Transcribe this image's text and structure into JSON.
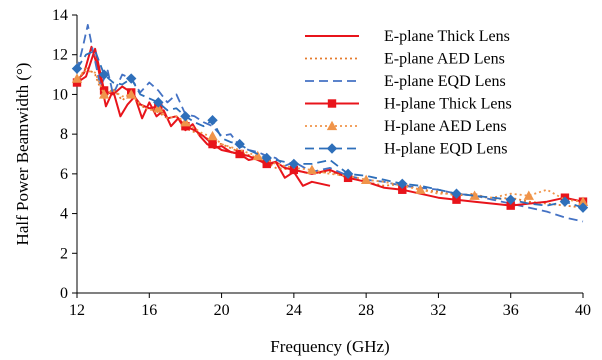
{
  "chart_data": {
    "type": "line",
    "xlabel": "Frequency (GHz)",
    "ylabel": "Half Power Beamwidth (°)",
    "xlim": [
      12,
      40
    ],
    "ylim": [
      0,
      14
    ],
    "xticks": [
      "12",
      "16",
      "20",
      "24",
      "28",
      "32",
      "36",
      "40"
    ],
    "yticks": [
      "0",
      "2",
      "4",
      "6",
      "8",
      "10",
      "12",
      "14"
    ],
    "grid": false,
    "legend_position": "top-right",
    "series": [
      {
        "name": "E-plane Thick Lens",
        "color": "#e8141b",
        "style": "solid",
        "marker": "none",
        "x": [
          12,
          12.4,
          12.8,
          13.2,
          13.6,
          14,
          14.4,
          14.8,
          15.2,
          15.6,
          16,
          16.4,
          16.8,
          17.2,
          17.6,
          18,
          18.4,
          18.8,
          19.2,
          19.6,
          20,
          20.5,
          21,
          21.5,
          22,
          22.5,
          23,
          23.5,
          24,
          24.5,
          25,
          25.5,
          26
        ],
        "y": [
          10.7,
          11.1,
          12.4,
          11.2,
          9.4,
          10.2,
          8.9,
          9.5,
          9.9,
          8.8,
          9.6,
          8.9,
          9.2,
          8.4,
          8.8,
          8.2,
          8.5,
          7.9,
          7.5,
          7.3,
          7.4,
          7.1,
          7.0,
          6.7,
          6.8,
          6.4,
          6.6,
          5.8,
          6.1,
          5.4,
          5.6,
          5.5,
          5.4
        ]
      },
      {
        "name": "E-plane AED Lens",
        "color": "#e57b2d",
        "style": "dotted",
        "marker": "none",
        "x": [
          12,
          12.5,
          13,
          13.5,
          14,
          14.5,
          15,
          15.5,
          16,
          16.5,
          17,
          17.5,
          18,
          18.5,
          19,
          19.5,
          20,
          21,
          22,
          23,
          24,
          25,
          26,
          27,
          28,
          29,
          30,
          31,
          32,
          33,
          34,
          35,
          36,
          37,
          38,
          39,
          40
        ],
        "y": [
          10.6,
          11.4,
          11.0,
          9.8,
          10.3,
          9.7,
          10.1,
          9.4,
          9.3,
          9.1,
          8.8,
          8.9,
          8.3,
          8.1,
          7.9,
          7.6,
          7.5,
          7.1,
          6.8,
          6.3,
          6.2,
          6.0,
          6.1,
          5.8,
          5.6,
          5.4,
          5.5,
          5.2,
          5.1,
          4.9,
          5.0,
          4.7,
          4.8,
          4.6,
          4.5,
          4.4,
          4.3
        ]
      },
      {
        "name": "E-plane EQD Lens",
        "color": "#4472c4",
        "style": "dashed",
        "marker": "none",
        "x": [
          12,
          12.3,
          12.6,
          12.9,
          13.3,
          13.7,
          14,
          14.5,
          15,
          15.5,
          16,
          16.5,
          17,
          17.5,
          18,
          18.5,
          19,
          19.5,
          20,
          20.5,
          21,
          21.5,
          22,
          22.5,
          23,
          23.5,
          24,
          25,
          26,
          27,
          28,
          29,
          30,
          31,
          32,
          33,
          34,
          35,
          36,
          37,
          38,
          39,
          40
        ],
        "y": [
          11.2,
          12.3,
          13.5,
          12.1,
          10.4,
          11.2,
          10.0,
          11.0,
          10.8,
          10.1,
          10.6,
          10.2,
          9.6,
          10.0,
          9.0,
          8.9,
          8.6,
          8.4,
          7.9,
          8.0,
          7.4,
          7.2,
          7.1,
          6.9,
          6.8,
          6.4,
          6.6,
          6.1,
          6.3,
          5.9,
          5.7,
          5.6,
          5.4,
          5.3,
          5.2,
          5.0,
          4.9,
          4.7,
          4.5,
          4.3,
          4.1,
          3.8,
          3.6
        ]
      },
      {
        "name": "H-plane Thick Lens",
        "color": "#e8141b",
        "style": "solid",
        "marker": "square",
        "x": [
          12,
          12.5,
          13,
          13.5,
          14,
          14.5,
          15,
          15.5,
          16,
          16.5,
          17,
          17.5,
          18,
          18.5,
          19,
          19.5,
          20,
          20.5,
          21,
          21.5,
          22,
          22.5,
          23,
          23.5,
          24,
          25,
          26,
          27,
          28,
          29,
          30,
          31,
          32,
          33,
          34,
          35,
          36,
          37,
          38,
          39,
          40
        ],
        "y": [
          10.6,
          10.9,
          12.3,
          10.2,
          10.0,
          10.4,
          10.1,
          9.5,
          9.3,
          9.4,
          8.8,
          8.9,
          8.4,
          8.2,
          7.9,
          7.5,
          7.2,
          7.1,
          7.0,
          6.9,
          6.7,
          6.5,
          6.6,
          6.3,
          6.2,
          6.0,
          6.2,
          5.8,
          5.6,
          5.3,
          5.2,
          5.0,
          4.8,
          4.7,
          4.6,
          4.5,
          4.4,
          4.5,
          4.6,
          4.8,
          4.6
        ]
      },
      {
        "name": "H-plane AED Lens",
        "color": "#f0944a",
        "style": "dotted",
        "marker": "triangle",
        "x": [
          12,
          12.5,
          13,
          13.5,
          14,
          14.5,
          15,
          15.5,
          16,
          16.5,
          17,
          17.5,
          18,
          18.5,
          19,
          19.5,
          20,
          21,
          22,
          23,
          24,
          25,
          26,
          27,
          28,
          29,
          30,
          31,
          32,
          33,
          34,
          35,
          36,
          37,
          38,
          39,
          40
        ],
        "y": [
          10.8,
          11.2,
          11.1,
          10.0,
          10.2,
          9.9,
          10.0,
          9.5,
          9.2,
          9.3,
          8.8,
          8.9,
          8.6,
          8.3,
          8.0,
          7.9,
          7.5,
          7.2,
          6.9,
          6.5,
          6.3,
          6.2,
          6.0,
          5.9,
          5.7,
          5.6,
          5.4,
          5.2,
          5.0,
          5.0,
          4.9,
          4.8,
          5.0,
          4.9,
          5.2,
          4.7,
          4.6
        ]
      },
      {
        "name": "H-plane EQD Lens",
        "color": "#2e6fba",
        "style": "dashed",
        "marker": "diamond",
        "x": [
          12,
          12.5,
          13,
          13.5,
          14,
          14.5,
          15,
          15.5,
          16,
          16.5,
          17,
          17.5,
          18,
          18.5,
          19,
          19.5,
          20,
          20.5,
          21,
          21.5,
          22,
          22.5,
          23,
          23.5,
          24,
          25,
          26,
          27,
          28,
          29,
          30,
          31,
          32,
          33,
          34,
          35,
          36,
          37,
          38,
          39,
          40
        ],
        "y": [
          11.3,
          12.0,
          12.2,
          11.0,
          10.6,
          10.5,
          10.8,
          10.0,
          9.8,
          9.6,
          9.2,
          9.3,
          8.9,
          8.6,
          8.4,
          8.7,
          7.8,
          7.6,
          7.5,
          7.2,
          7.0,
          6.8,
          6.7,
          6.6,
          6.5,
          6.5,
          6.7,
          6.0,
          5.9,
          5.7,
          5.5,
          5.4,
          5.2,
          5.0,
          4.9,
          4.8,
          4.7,
          4.5,
          4.4,
          4.6,
          4.3
        ]
      }
    ]
  }
}
